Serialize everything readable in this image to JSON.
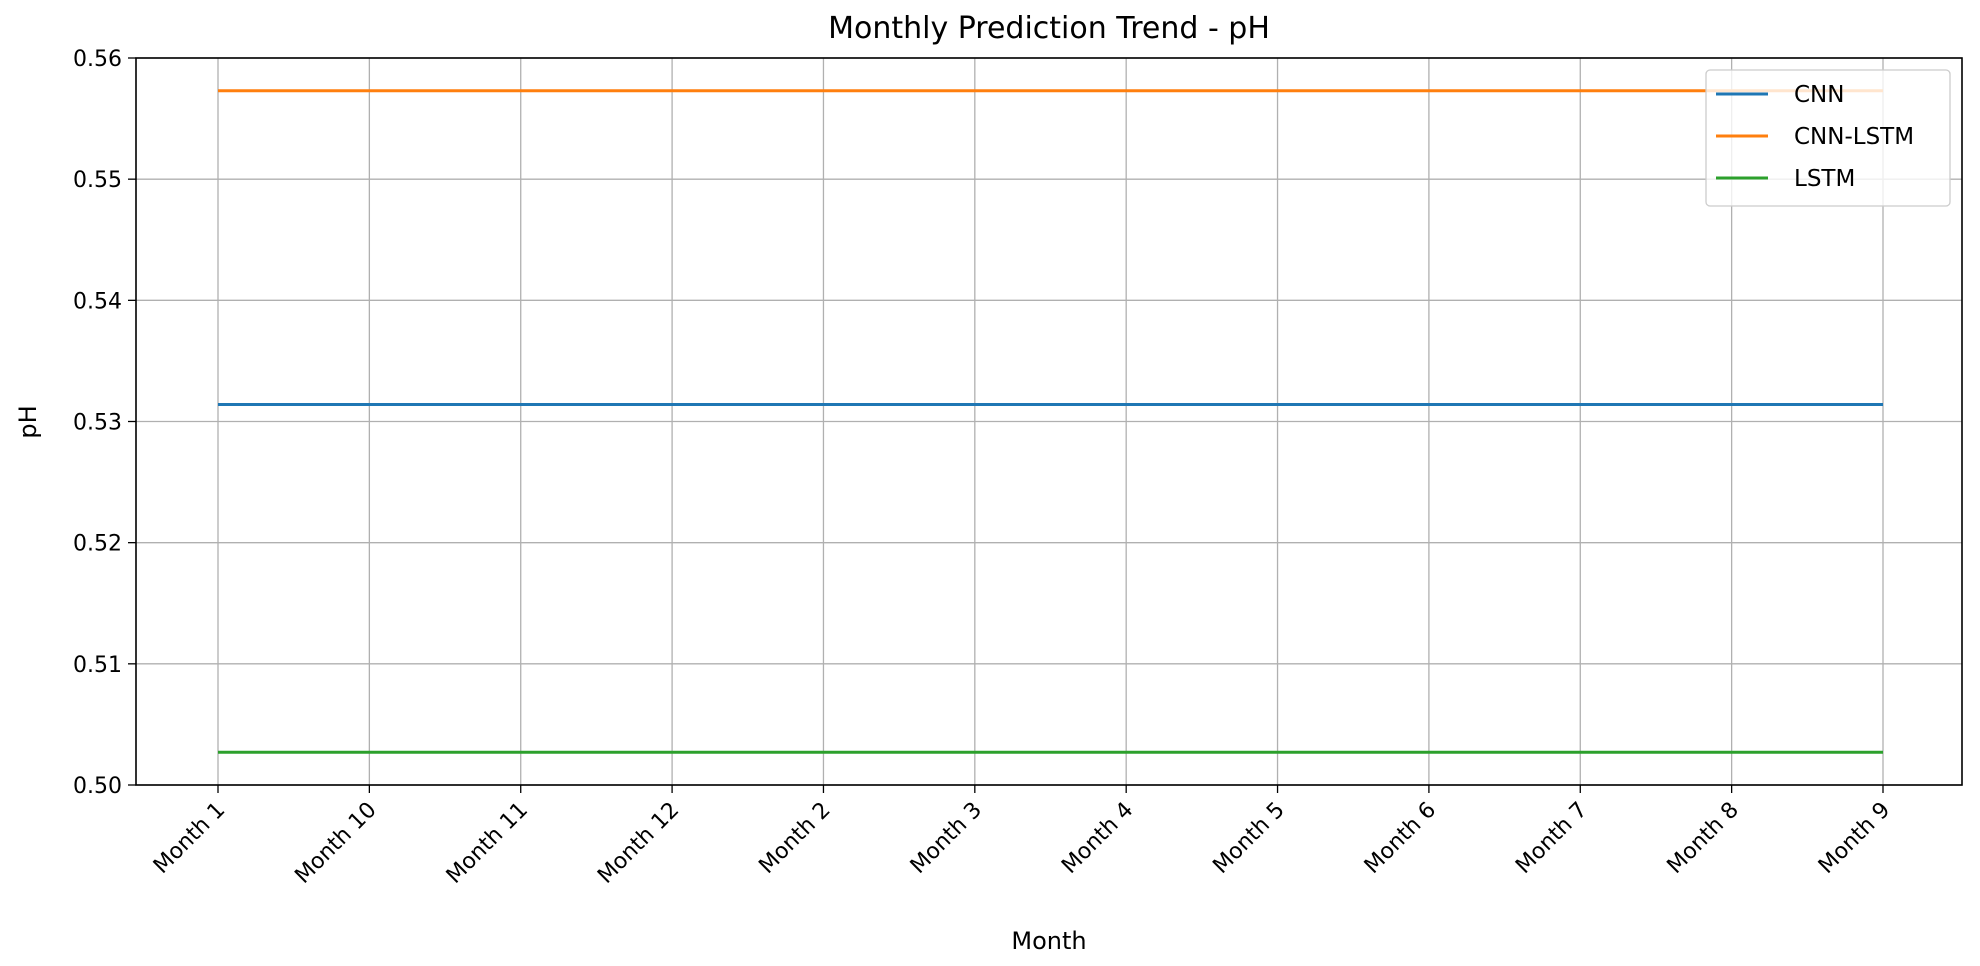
{
  "chart_data": {
    "type": "line",
    "title": "Monthly Prediction Trend - pH",
    "xlabel": "Month",
    "ylabel": "pH",
    "categories": [
      "Month 1",
      "Month 10",
      "Month 11",
      "Month 12",
      "Month 2",
      "Month 3",
      "Month 4",
      "Month 5",
      "Month 6",
      "Month 7",
      "Month 8",
      "Month 9"
    ],
    "ylim": [
      0.5,
      0.56
    ],
    "yticks": [
      "0.50",
      "0.51",
      "0.52",
      "0.53",
      "0.54",
      "0.55",
      "0.56"
    ],
    "grid": true,
    "legend_position": "top-right",
    "series": [
      {
        "name": "CNN",
        "color": "#1f77b4",
        "values": [
          0.5314,
          0.5314,
          0.5314,
          0.5314,
          0.5314,
          0.5314,
          0.5314,
          0.5314,
          0.5314,
          0.5314,
          0.5314,
          0.5314
        ]
      },
      {
        "name": "CNN-LSTM",
        "color": "#ff7f0e",
        "values": [
          0.5573,
          0.5573,
          0.5573,
          0.5573,
          0.5573,
          0.5573,
          0.5573,
          0.5573,
          0.5573,
          0.5573,
          0.5573,
          0.5573
        ]
      },
      {
        "name": "LSTM",
        "color": "#2ca02c",
        "values": [
          0.5027,
          0.5027,
          0.5027,
          0.5027,
          0.5027,
          0.5027,
          0.5027,
          0.5027,
          0.5027,
          0.5027,
          0.5027,
          0.5027
        ]
      }
    ]
  }
}
